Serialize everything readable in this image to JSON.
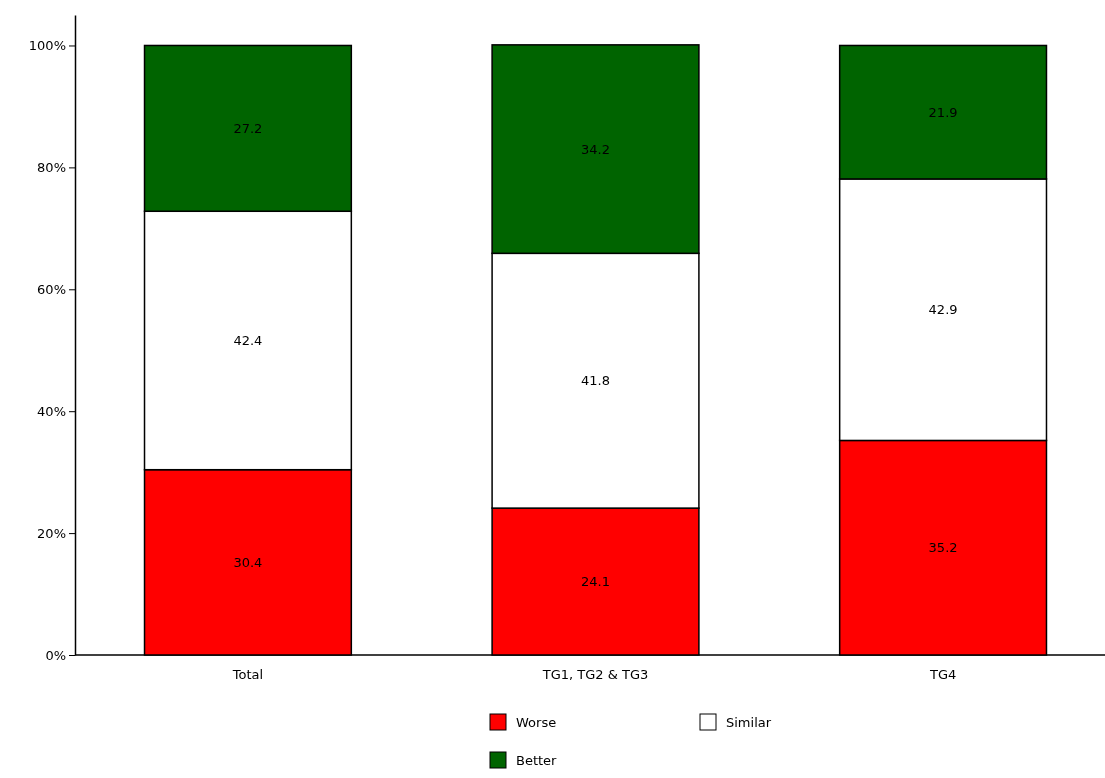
{
  "chart_data": {
    "type": "bar",
    "stacked": true,
    "categories": [
      "Total",
      "TG1, TG2 & TG3",
      "TG4"
    ],
    "series": [
      {
        "name": "Worse",
        "color": "#ff0000",
        "values": [
          30.4,
          24.1,
          35.2
        ]
      },
      {
        "name": "Similar",
        "color": "#ffffff",
        "values": [
          42.4,
          41.8,
          42.9
        ]
      },
      {
        "name": "Better",
        "color": "#006400",
        "values": [
          27.2,
          34.2,
          21.9
        ]
      }
    ],
    "ylim": [
      0,
      105
    ],
    "yticks": [
      {
        "value": 0,
        "label": "0%"
      },
      {
        "value": 20,
        "label": "20%"
      },
      {
        "value": 40,
        "label": "40%"
      },
      {
        "value": 60,
        "label": "60%"
      },
      {
        "value": 80,
        "label": "80%"
      },
      {
        "value": 100,
        "label": "100%"
      }
    ],
    "data_labels": true,
    "legend": "bottom",
    "grid": false
  }
}
